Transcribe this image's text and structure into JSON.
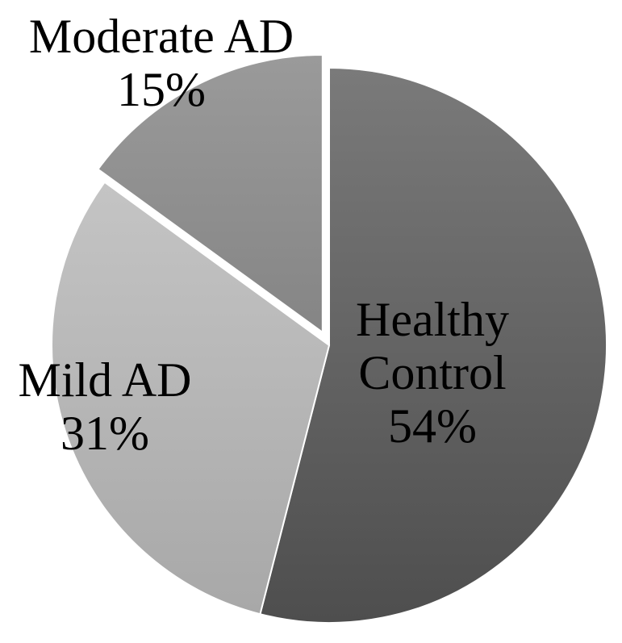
{
  "chart_data": {
    "type": "pie",
    "slices": [
      {
        "name": "Healthy Control",
        "label_lines": [
          "Healthy",
          "Control"
        ],
        "value": 54,
        "value_label": "54%",
        "color": "#5c5c5c",
        "exploded": false
      },
      {
        "name": "Mild AD",
        "label_lines": [
          "Mild AD"
        ],
        "value": 31,
        "value_label": "31%",
        "color": "#b2b2b2",
        "exploded": false
      },
      {
        "name": "Moderate AD",
        "label_lines": [
          "Moderate AD"
        ],
        "value": 15,
        "value_label": "15%",
        "color": "#8c8c8c",
        "exploded": true
      }
    ],
    "start_angle": "12 o'clock, clockwise",
    "legend": "none"
  }
}
